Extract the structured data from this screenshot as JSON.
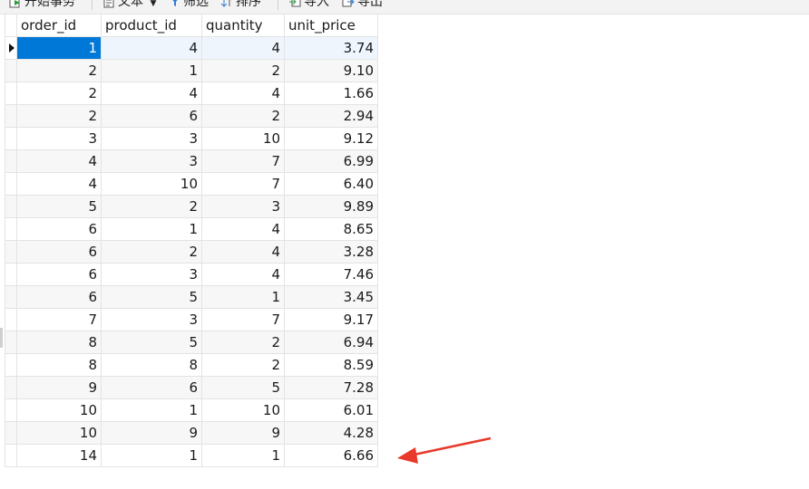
{
  "toolbar": {
    "items": [
      {
        "label": "开始事务",
        "icon": "begin-transaction-icon"
      },
      {
        "label": "文本",
        "icon": "text-icon"
      },
      {
        "label": "筛选",
        "icon": "filter-icon"
      },
      {
        "label": "排序",
        "icon": "sort-icon"
      },
      {
        "label": "导入",
        "icon": "import-icon"
      },
      {
        "label": "导出",
        "icon": "export-icon"
      }
    ]
  },
  "grid": {
    "columns": [
      "order_id",
      "product_id",
      "quantity",
      "unit_price"
    ],
    "rows": [
      [
        "1",
        "4",
        "4",
        "3.74"
      ],
      [
        "2",
        "1",
        "2",
        "9.10"
      ],
      [
        "2",
        "4",
        "4",
        "1.66"
      ],
      [
        "2",
        "6",
        "2",
        "2.94"
      ],
      [
        "3",
        "3",
        "10",
        "9.12"
      ],
      [
        "4",
        "3",
        "7",
        "6.99"
      ],
      [
        "4",
        "10",
        "7",
        "6.40"
      ],
      [
        "5",
        "2",
        "3",
        "9.89"
      ],
      [
        "6",
        "1",
        "4",
        "8.65"
      ],
      [
        "6",
        "2",
        "4",
        "3.28"
      ],
      [
        "6",
        "3",
        "4",
        "7.46"
      ],
      [
        "6",
        "5",
        "1",
        "3.45"
      ],
      [
        "7",
        "3",
        "7",
        "9.17"
      ],
      [
        "8",
        "5",
        "2",
        "6.94"
      ],
      [
        "8",
        "8",
        "2",
        "8.59"
      ],
      [
        "9",
        "6",
        "5",
        "7.28"
      ],
      [
        "10",
        "1",
        "10",
        "6.01"
      ],
      [
        "10",
        "9",
        "9",
        "4.28"
      ],
      [
        "14",
        "1",
        "1",
        "6.66"
      ]
    ]
  },
  "colors": {
    "selection": "#0078d7",
    "annotation_arrow": "#e8392a"
  }
}
